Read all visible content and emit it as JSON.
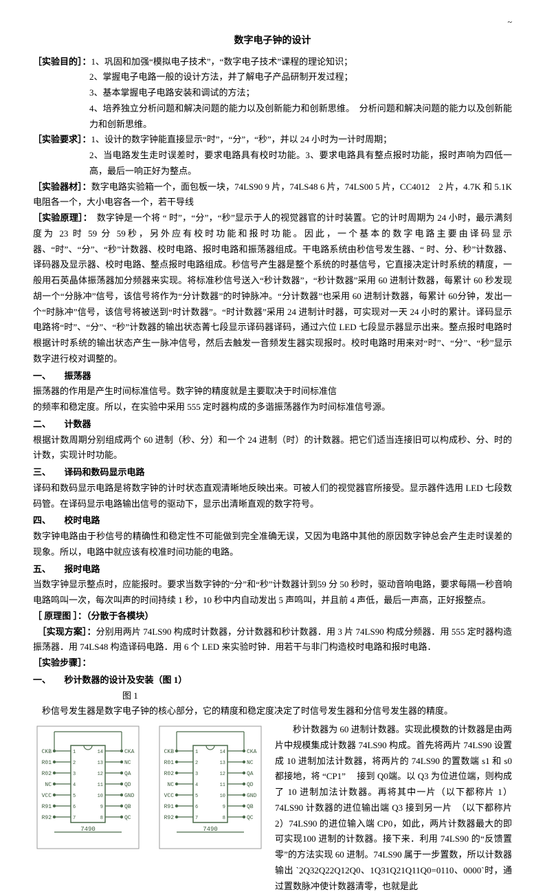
{
  "page_corner": "~",
  "title": "数字电子钟的设计",
  "labels": {
    "mude": "［实验目的］：",
    "yaoqiu": "［实验要求］：",
    "qicai": "［实验器材］：",
    "yuanli": "［实验原理］：",
    "yuanlitu": "［ 原理图 ］：（分散于各模块）",
    "fangan": "［实现方案］：",
    "buzhou": "［实验步骤］："
  },
  "mude": {
    "l1": "1、巩固和加强“模拟电子技术”，“数字电子技术”课程的理论知识；",
    "l2": "2、掌握电子电路一般的设计方法，并了解电子产品研制开发过程；",
    "l3": "3、基本掌握电子电路安装和调试的方法；",
    "l4": "4、培养独立分析问题和解决问题的能力以及创新能力和创新思维。　分析问题和解决问题的能力以及创新能力和创新思维。"
  },
  "yaoqiu": {
    "l1": "1、设计的数字钟能直接显示“时”，“分”，“秒”，并以 24 小时为一计时周期；",
    "l2": "2、当电路发生走时误差时，要求电路具有校时功能。3、要求电路具有整点报时功能，报时声响为四低一高，最后一响正好为整点。"
  },
  "qicai": "数字电路实验箱一个，面包板一块，74LS90 9 片，74LS48 6 片，74LS00 5 片，CC4012　2 片，4.7K 和 5.1K 电阻各一个，大小电容各一个，若干导线",
  "yuanli": "　数字钟是一个将 “ 时”，“分”，“秒”显示于人的视觉器官的计时装置。它的计时周期为 24 小时，最示满刻度为 23 时 59 分 59秒，另外应有校时功能和报时功能。因此，一个基本的数字电路主要由译码显示器、“时”、“分”、“秒”计数器、校时电路、报时电路和振荡器组成。干电路系统由秒信号发生器、“ 时、分、秒”计数器、译码器及显示器、校时电路、整点报时电路组成。秒信号产生器是整个系统的时基信号，它直接决定计时系统的精度，一般用石英晶体振荡器加分频器来实现。将标准秒信号送入“秒计数器”，“秒计数器”采用 60 进制计数器，每累计 60 秒发现胡一个“分脉冲”信号，该信号将作为“分计数器”的时钟脉冲。“分计数器”也采用 60 进制计数器，每累计 60分钟，发出一个“时脉冲”信号，该信号将被送到“时计数器”。“时计数器”采用 24 进制计时器，可实现对一天 24 小时的累计。译码显示电路将“时”、“分”、“秒”计数器的输出状态菁七段显示译码器译码，通过六位 LED 七段显示器显示出来。整点报时电路时根据计时系统的输出状态产生一脉冲信号，然后去触发一音频发生器实现报时。校时电路时用来对“时”、“分”、“秒”显示数字进行校对调整的。",
  "sec1": {
    "head": "一、　　振荡器",
    "body": "振荡器的作用是产生时间标准信号。数字钟的精度就是主要取决于时间标准信\n的频率和稳定度。所以，在实验中采用 555 定时器构成的多谐振荡器作为时间标准信号源。"
  },
  "sec2": {
    "head": "二、　　计数器",
    "body": "根据计数周期分别组成两个 60 进制（秒、分）和一个 24 进制（时）的计数器。把它们适当连接旧可以构成秒、分、时的计数，实现计时功能。"
  },
  "sec3": {
    "head": "三、　　译码和数码显示电路",
    "body": "译码和数码显示电路是将数字钟的计时状态直观清晰地反映出来。可被人们的视觉器官所接受。显示器件选用 LED 七段数码管。在译码显示电路输出信号的驱动下，显示出清晰直观的数字符号。"
  },
  "sec4": {
    "head": "四、　　校时电路",
    "body": "数字钟电路由于秒信号的精确性和稳定性不可能做到完全准确无误，又因为电路中其他的原因数字钟总会产生走时误差的现象。所以，电路中就应该有校准时间功能的电路。"
  },
  "sec5": {
    "head": "五、　　报时电路",
    "body": "当数字钟显示整点时，应能报时。要求当数字钟的“分”和“秒”计数器计到59 分 50 秒时，驱动音响电路，要求每隔一秒音响电路鸣叫一次，每次叫声的时间持续 1 秒，10 秒中内自动发出 5 声鸣叫，并且前 4 声低，最后一声高，正好报整点。"
  },
  "fangan": "分别用两片 74LS90 构成时计数器，分计数器和秒计数器．用 3 片 74LS90 构成分频器．用 555 定时器构造振荡器．用 74LS48 构造译码电路．用 6 个 LED 来实验时钟．用若干与非门构造校时电路和报时电路．",
  "step1": {
    "head": "一、　　秒计数器的设计及安装（图 1）",
    "figlabel": "图 1",
    "intro": "　秒信号发生器是数字电子钟的核心部分，它的精度和稳定度决定了时信号发生器和分信号发生器的精度。"
  },
  "right_text": "　　秒计数器为 60 进制计数器。实现此模数的计数器是由两片中规模集成计数器 74LS90 构成。首先将两片 74LS90 设置成 10 进制加法计数器，将两片的 74LS90 的置数端 s1 和 s0 都接地，将 “CP1” 　接到 Q0端。以 Q3 为位进位端，则构成了 10 进制加法计数器。再将其中一片（以下都称片 1）74LS90 计数器的进位输出端 Q3 接到另一片　（以下都称片 2）74LS90 的进位输入端 CP0，如此，两片计数器最大的即可实现100 进制的计数器。接下来．利用 74LS90 的“反馈置零”的方法实现 60 进制。74LS90 属于一步置数，所以计数器输出 `2Q32Q22Q12Q0、1Q31Q21Q11Q0=0110、0000`时，通过置数脉冲使计数器清零，也就是此",
  "chip": {
    "name": "7490",
    "left_pins": [
      "CKB",
      "R01",
      "R02",
      "NC",
      "VCC",
      "R91",
      "R92"
    ],
    "right_pins": [
      "CKA",
      "NC",
      "QA",
      "QD",
      "GND",
      "QB",
      "QC"
    ],
    "left_nums": [
      "1",
      "2",
      "3",
      "4",
      "5",
      "6",
      "7"
    ],
    "right_nums": [
      "14",
      "13",
      "12",
      "11",
      "10",
      "9",
      "8"
    ],
    "colors": {
      "line": "#4a6a4a",
      "dot": "#4a6a4a",
      "text": "#3a5a3a"
    }
  }
}
